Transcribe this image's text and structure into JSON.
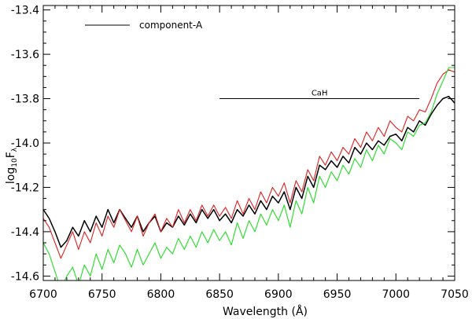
{
  "chart_data": {
    "type": "line",
    "xlabel": "Wavelength (Å)",
    "ylabel_base": "log",
    "ylabel_sub": "10",
    "ylabel_main": "F",
    "ylabel_lambda": "λ",
    "xlim": [
      6700,
      7050
    ],
    "ylim": [
      -14.62,
      -13.38
    ],
    "x_ticks": [
      6700,
      6750,
      6800,
      6850,
      6900,
      6950,
      7000,
      7050
    ],
    "y_ticks": [
      -14.6,
      -14.4,
      -14.2,
      -14.0,
      -13.8,
      -13.6,
      -13.4
    ],
    "legend": [
      {
        "label": "component-A",
        "color": "#000000"
      }
    ],
    "band": {
      "label": "CaH",
      "x_start": 6850,
      "x_end": 7020,
      "y": -13.8
    },
    "series": [
      {
        "color": "#000000",
        "x": [
          6700,
          6705,
          6710,
          6715,
          6720,
          6725,
          6730,
          6735,
          6740,
          6745,
          6750,
          6755,
          6760,
          6765,
          6770,
          6775,
          6780,
          6785,
          6790,
          6795,
          6800,
          6805,
          6810,
          6815,
          6820,
          6825,
          6830,
          6835,
          6840,
          6845,
          6850,
          6855,
          6860,
          6865,
          6870,
          6875,
          6880,
          6885,
          6890,
          6895,
          6900,
          6905,
          6910,
          6915,
          6920,
          6925,
          6930,
          6935,
          6940,
          6945,
          6950,
          6955,
          6960,
          6965,
          6970,
          6975,
          6980,
          6985,
          6990,
          6995,
          7000,
          7005,
          7010,
          7015,
          7020,
          7025,
          7030,
          7035,
          7040,
          7045,
          7050
        ],
        "y": [
          -14.3,
          -14.34,
          -14.4,
          -14.47,
          -14.44,
          -14.38,
          -14.42,
          -14.35,
          -14.4,
          -14.33,
          -14.38,
          -14.3,
          -14.36,
          -14.3,
          -14.34,
          -14.38,
          -14.33,
          -14.4,
          -14.36,
          -14.33,
          -14.4,
          -14.36,
          -14.38,
          -14.33,
          -14.37,
          -14.32,
          -14.36,
          -14.3,
          -14.34,
          -14.3,
          -14.35,
          -14.32,
          -14.36,
          -14.3,
          -14.33,
          -14.28,
          -14.32,
          -14.26,
          -14.3,
          -14.24,
          -14.27,
          -14.22,
          -14.3,
          -14.2,
          -14.25,
          -14.15,
          -14.2,
          -14.1,
          -14.12,
          -14.08,
          -14.11,
          -14.06,
          -14.09,
          -14.02,
          -14.05,
          -14.0,
          -14.03,
          -13.99,
          -14.01,
          -13.97,
          -13.96,
          -13.99,
          -13.93,
          -13.95,
          -13.9,
          -13.92,
          -13.87,
          -13.83,
          -13.8,
          -13.79,
          -13.82
        ]
      },
      {
        "color": "#dd2020",
        "x": [
          6700,
          6705,
          6710,
          6715,
          6720,
          6725,
          6730,
          6735,
          6740,
          6745,
          6750,
          6755,
          6760,
          6765,
          6770,
          6775,
          6780,
          6785,
          6790,
          6795,
          6800,
          6805,
          6810,
          6815,
          6820,
          6825,
          6830,
          6835,
          6840,
          6845,
          6850,
          6855,
          6860,
          6865,
          6870,
          6875,
          6880,
          6885,
          6890,
          6895,
          6900,
          6905,
          6910,
          6915,
          6920,
          6925,
          6930,
          6935,
          6940,
          6945,
          6950,
          6955,
          6960,
          6965,
          6970,
          6975,
          6980,
          6985,
          6990,
          6995,
          7000,
          7005,
          7010,
          7015,
          7020,
          7025,
          7030,
          7035,
          7040,
          7045,
          7050
        ],
        "y": [
          -14.34,
          -14.38,
          -14.45,
          -14.52,
          -14.46,
          -14.4,
          -14.48,
          -14.4,
          -14.45,
          -14.36,
          -14.42,
          -14.33,
          -14.38,
          -14.3,
          -14.35,
          -14.4,
          -14.33,
          -14.42,
          -14.36,
          -14.32,
          -14.4,
          -14.34,
          -14.38,
          -14.3,
          -14.36,
          -14.3,
          -14.35,
          -14.28,
          -14.33,
          -14.28,
          -14.33,
          -14.29,
          -14.34,
          -14.26,
          -14.32,
          -14.25,
          -14.3,
          -14.22,
          -14.27,
          -14.2,
          -14.24,
          -14.18,
          -14.27,
          -14.17,
          -14.22,
          -14.12,
          -14.17,
          -14.06,
          -14.1,
          -14.04,
          -14.08,
          -14.02,
          -14.05,
          -13.98,
          -14.02,
          -13.95,
          -13.99,
          -13.93,
          -13.97,
          -13.9,
          -13.93,
          -13.95,
          -13.88,
          -13.9,
          -13.85,
          -13.86,
          -13.8,
          -13.73,
          -13.69,
          -13.67,
          -13.68
        ]
      },
      {
        "color": "#22dd22",
        "x": [
          6700,
          6705,
          6710,
          6715,
          6720,
          6725,
          6730,
          6735,
          6740,
          6745,
          6750,
          6755,
          6760,
          6765,
          6770,
          6775,
          6780,
          6785,
          6790,
          6795,
          6800,
          6805,
          6810,
          6815,
          6820,
          6825,
          6830,
          6835,
          6840,
          6845,
          6850,
          6855,
          6860,
          6865,
          6870,
          6875,
          6880,
          6885,
          6890,
          6895,
          6900,
          6905,
          6910,
          6915,
          6920,
          6925,
          6930,
          6935,
          6940,
          6945,
          6950,
          6955,
          6960,
          6965,
          6970,
          6975,
          6980,
          6985,
          6990,
          6995,
          7000,
          7005,
          7010,
          7015,
          7020,
          7025,
          7030,
          7035,
          7040,
          7045,
          7050
        ],
        "y": [
          -14.45,
          -14.5,
          -14.58,
          -14.66,
          -14.6,
          -14.56,
          -14.64,
          -14.55,
          -14.6,
          -14.5,
          -14.57,
          -14.48,
          -14.54,
          -14.46,
          -14.5,
          -14.56,
          -14.48,
          -14.55,
          -14.5,
          -14.45,
          -14.52,
          -14.47,
          -14.5,
          -14.43,
          -14.48,
          -14.42,
          -14.47,
          -14.4,
          -14.45,
          -14.39,
          -14.44,
          -14.4,
          -14.46,
          -14.36,
          -14.43,
          -14.35,
          -14.4,
          -14.32,
          -14.37,
          -14.3,
          -14.35,
          -14.28,
          -14.38,
          -14.26,
          -14.32,
          -14.2,
          -14.27,
          -14.15,
          -14.2,
          -14.13,
          -14.17,
          -14.1,
          -14.14,
          -14.07,
          -14.11,
          -14.03,
          -14.08,
          -14.01,
          -14.05,
          -13.98,
          -14.0,
          -14.03,
          -13.95,
          -13.97,
          -13.92,
          -13.91,
          -13.86,
          -13.78,
          -13.72,
          -13.66,
          -13.66
        ]
      }
    ]
  }
}
